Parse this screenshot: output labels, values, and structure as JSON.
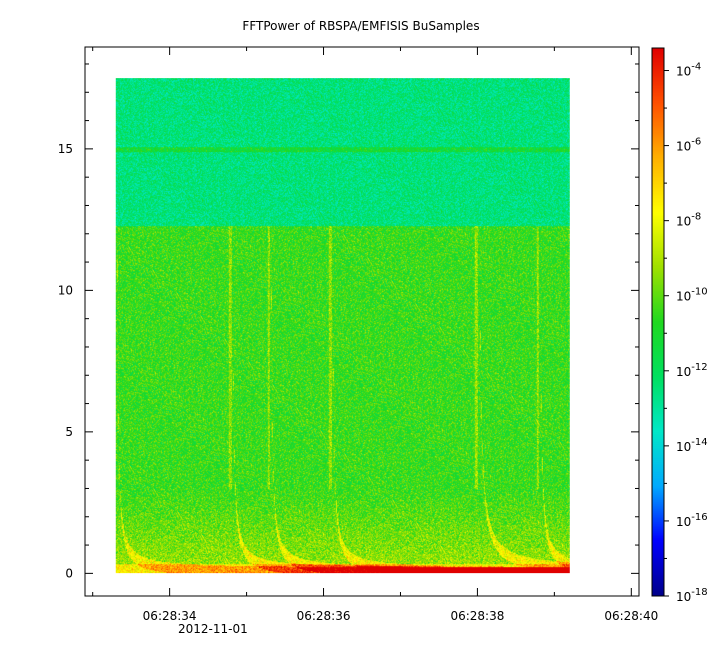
{
  "chart_data": {
    "type": "heatmap",
    "title": "FFTPower of RBSPA/EMFISIS  BuSamples",
    "xlabel": "",
    "ylabel": "",
    "x_ticks": [
      {
        "value": 34,
        "label": "06:28:34"
      },
      {
        "value": 36,
        "label": "06:28:36"
      },
      {
        "value": 38,
        "label": "06:28:38"
      },
      {
        "value": 40,
        "label": "06:28:40"
      }
    ],
    "x_date_label": "2012-11-01",
    "xlim": [
      32.9,
      40.1
    ],
    "data_xrange": [
      33.3,
      39.2
    ],
    "y_ticks": [
      0,
      5,
      10,
      15
    ],
    "ylim": [
      -0.8,
      18.6
    ],
    "data_yrange": [
      0,
      17.5
    ],
    "colorbar": {
      "scale": "log",
      "range_exp": [
        -18,
        -3.4
      ],
      "tick_exponents": [
        -4,
        -6,
        -8,
        -10,
        -12,
        -14,
        -16,
        -18
      ],
      "colormap": [
        "#00008b",
        "#0000ff",
        "#00aaff",
        "#00e8c8",
        "#00e060",
        "#20d820",
        "#a0e000",
        "#ffff00",
        "#ffb000",
        "#ff5000",
        "#e00000"
      ]
    },
    "features": {
      "upper_band_level_exp": -12.5,
      "lower_band_level_exp": -10.5,
      "band_boundary_y": 12.3,
      "line_y": 15.0,
      "floor_y": 0.1,
      "rising_tone_times": [
        33.3,
        34.8,
        35.3,
        36.1,
        38.0,
        38.8
      ]
    }
  }
}
